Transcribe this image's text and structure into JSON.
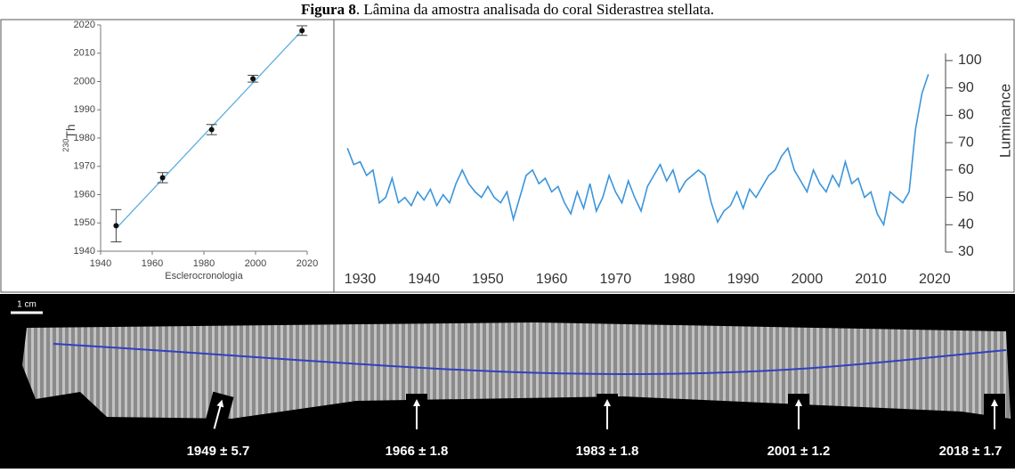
{
  "caption": {
    "label": "Figura 8",
    "text": ". Lâmina da amostra analisada do coral Siderastrea stellata."
  },
  "chart_data": [
    {
      "type": "scatter",
      "x_label": "Esclerocronologia",
      "y_label_sup": "230",
      "y_label": "Th",
      "x": [
        1946,
        1964,
        1983,
        1999,
        2018
      ],
      "values": [
        1949,
        1966,
        1983,
        2001,
        2018
      ],
      "errors": [
        5.7,
        1.8,
        1.8,
        1.2,
        1.7
      ],
      "color": "#111111",
      "fit": {
        "x": [
          1946,
          2018
        ],
        "values": [
          1948,
          2018
        ],
        "color": "#5aaee0"
      },
      "xlim": [
        1940,
        2020
      ],
      "xticks": [
        1940,
        1960,
        1980,
        2000,
        2020
      ],
      "ylim": [
        1940,
        2020
      ],
      "yticks": [
        1940,
        1950,
        1960,
        1970,
        1980,
        1990,
        2000,
        2010,
        2020
      ]
    },
    {
      "type": "line",
      "y_label": "Luminance",
      "color": "#3a95dc",
      "x": [
        1928,
        1929,
        1930,
        1931,
        1932,
        1933,
        1934,
        1935,
        1936,
        1937,
        1938,
        1939,
        1940,
        1941,
        1942,
        1943,
        1944,
        1945,
        1946,
        1947,
        1948,
        1949,
        1950,
        1951,
        1952,
        1953,
        1954,
        1955,
        1956,
        1957,
        1958,
        1959,
        1960,
        1961,
        1962,
        1963,
        1964,
        1965,
        1966,
        1967,
        1968,
        1969,
        1970,
        1971,
        1972,
        1973,
        1974,
        1975,
        1976,
        1977,
        1978,
        1979,
        1980,
        1981,
        1982,
        1983,
        1984,
        1985,
        1986,
        1987,
        1988,
        1989,
        1990,
        1991,
        1992,
        1993,
        1994,
        1995,
        1996,
        1997,
        1998,
        1999,
        2000,
        2001,
        2002,
        2003,
        2004,
        2005,
        2006,
        2007,
        2008,
        2009,
        2010,
        2011,
        2012,
        2013,
        2014,
        2015,
        2016,
        2017,
        2018,
        2019
      ],
      "values": [
        68,
        62,
        63,
        58,
        60,
        48,
        50,
        57,
        48,
        50,
        47,
        52,
        49,
        53,
        47,
        51,
        48,
        55,
        60,
        55,
        52,
        50,
        54,
        50,
        48,
        52,
        42,
        50,
        58,
        60,
        55,
        57,
        52,
        54,
        48,
        44,
        52,
        46,
        55,
        45,
        50,
        58,
        52,
        48,
        56,
        50,
        45,
        54,
        58,
        62,
        56,
        60,
        52,
        56,
        58,
        60,
        58,
        48,
        41,
        45,
        47,
        52,
        46,
        53,
        50,
        54,
        58,
        60,
        65,
        68,
        60,
        56,
        52,
        60,
        55,
        52,
        58,
        54,
        63,
        55,
        57,
        50,
        52,
        44,
        40,
        52,
        50,
        48,
        52,
        75,
        88,
        95
      ],
      "xlim": [
        1927,
        2021
      ],
      "xticks": [
        1930,
        1940,
        1950,
        1960,
        1970,
        1980,
        1990,
        2000,
        2010,
        2020
      ],
      "ylim": [
        30,
        100
      ],
      "yticks": [
        30,
        40,
        50,
        60,
        70,
        80,
        90,
        100
      ]
    }
  ],
  "coral_image": {
    "scale_label": "1 cm",
    "date_labels": [
      "1949 ± 5.7",
      "1966 ± 1.8",
      "1983 ± 1.8",
      "2001 ± 1.2",
      "2018 ± 1.7"
    ]
  }
}
